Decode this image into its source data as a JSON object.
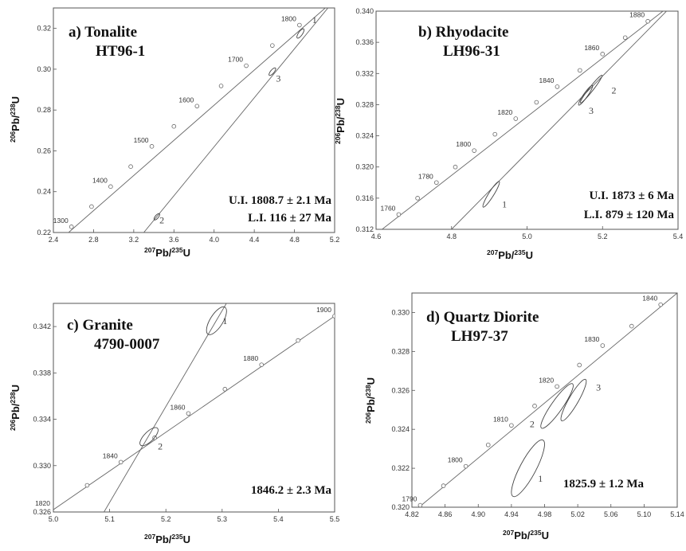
{
  "chart_data": [
    {
      "type": "scatter",
      "panel": "a",
      "title": "a) Tonalite",
      "subtitle": "HT96-1",
      "xlabel": {
        "pre": "207",
        "main": "Pb/",
        "sup": "235",
        "post": "U"
      },
      "ylabel": {
        "pre": "206",
        "main": "Pb/",
        "sup": "238",
        "post": "U"
      },
      "xlim": [
        2.4,
        5.2
      ],
      "ylim": [
        0.22,
        0.33
      ],
      "x_ticks": [
        "2.4",
        "2.8",
        "3.2",
        "3.6",
        "4.0",
        "4.4",
        "4.8",
        "5.2"
      ],
      "y_ticks": [
        "0.22",
        "0.24",
        "0.26",
        "0.28",
        "0.30",
        "0.32"
      ],
      "concordia_age_labels": [
        {
          "age": "1300",
          "x": 2.58,
          "y": 0.2228
        },
        {
          "age": "1400",
          "x": 2.97,
          "y": 0.2425
        },
        {
          "age": "1500",
          "x": 3.38,
          "y": 0.2622
        },
        {
          "age": "1600",
          "x": 3.83,
          "y": 0.2819
        },
        {
          "age": "1700",
          "x": 4.32,
          "y": 0.3017
        },
        {
          "age": "1800",
          "x": 4.85,
          "y": 0.3216
        }
      ],
      "concordia_markers": [
        [
          2.58,
          0.2228
        ],
        [
          2.78,
          0.2327
        ],
        [
          2.97,
          0.2425
        ],
        [
          3.17,
          0.2523
        ],
        [
          3.38,
          0.2622
        ],
        [
          3.6,
          0.272
        ],
        [
          3.83,
          0.2819
        ],
        [
          4.07,
          0.2918
        ],
        [
          4.32,
          0.3017
        ],
        [
          4.58,
          0.3116
        ],
        [
          4.85,
          0.3216
        ]
      ],
      "concordia_line": [
        [
          2.4,
          0.2135
        ],
        [
          5.2,
          0.334
        ]
      ],
      "discordia_line": [
        [
          3.3,
          0.22
        ],
        [
          5.2,
          0.334
        ]
      ],
      "ellipses": [
        {
          "label": "1",
          "x": 4.86,
          "y": 0.3175
        },
        {
          "label": "3",
          "x": 4.58,
          "y": 0.2988
        },
        {
          "label": "2",
          "x": 3.43,
          "y": 0.2277
        }
      ],
      "ellipse_label_positions": [
        {
          "label": "1",
          "x": 5.0,
          "y": 0.3225
        },
        {
          "label": "3",
          "x": 4.64,
          "y": 0.294
        },
        {
          "label": "2",
          "x": 3.48,
          "y": 0.2245
        }
      ],
      "annotations": [
        "U.I. 1808.7 ± 2.1 Ma",
        "L.I. 116 ± 27 Ma"
      ]
    },
    {
      "type": "scatter",
      "panel": "b",
      "title": "b) Rhyodacite",
      "subtitle": "LH96-31",
      "xlabel": {
        "pre": "207",
        "main": "Pb/",
        "sup": "235",
        "post": "U"
      },
      "ylabel": {
        "pre": "206",
        "main": "Pb/",
        "sup": "238",
        "post": "U"
      },
      "xlim": [
        4.6,
        5.4
      ],
      "ylim": [
        0.312,
        0.34
      ],
      "x_ticks": [
        "4.6",
        "4.8",
        "5.0",
        "5.2",
        "5.4"
      ],
      "y_ticks": [
        "0.312",
        "0.316",
        "0.320",
        "0.324",
        "0.328",
        "0.332",
        "0.336",
        "0.340"
      ],
      "concordia_age_labels": [
        {
          "age": "1760",
          "x": 4.66,
          "y": 0.3139
        },
        {
          "age": "1780",
          "x": 4.76,
          "y": 0.318
        },
        {
          "age": "1800",
          "x": 4.86,
          "y": 0.3221
        },
        {
          "age": "1820",
          "x": 4.97,
          "y": 0.3262
        },
        {
          "age": "1840",
          "x": 5.08,
          "y": 0.3303
        },
        {
          "age": "1860",
          "x": 5.2,
          "y": 0.3345
        },
        {
          "age": "1880",
          "x": 5.32,
          "y": 0.3387
        }
      ],
      "concordia_markers": [
        [
          4.66,
          0.3139
        ],
        [
          4.71,
          0.316
        ],
        [
          4.76,
          0.318
        ],
        [
          4.81,
          0.32
        ],
        [
          4.86,
          0.3221
        ],
        [
          4.915,
          0.3242
        ],
        [
          4.97,
          0.3262
        ],
        [
          5.025,
          0.3283
        ],
        [
          5.08,
          0.3303
        ],
        [
          5.14,
          0.3324
        ],
        [
          5.2,
          0.3345
        ],
        [
          5.26,
          0.3366
        ],
        [
          5.32,
          0.3387
        ]
      ],
      "concordia_line": [
        [
          4.6,
          0.3114
        ],
        [
          5.4,
          0.3415
        ]
      ],
      "discordia_line": [
        [
          4.8,
          0.312
        ],
        [
          5.4,
          0.3415
        ]
      ],
      "ellipses": [
        {
          "label": "1",
          "x": 4.905,
          "y": 0.3165
        },
        {
          "label": "3",
          "x": 5.155,
          "y": 0.3292
        },
        {
          "label": "2",
          "x": 5.17,
          "y": 0.33
        }
      ],
      "ellipse_label_positions": [
        {
          "label": "1",
          "x": 4.94,
          "y": 0.3148
        },
        {
          "label": "3",
          "x": 5.17,
          "y": 0.3268
        },
        {
          "label": "2",
          "x": 5.23,
          "y": 0.3294
        }
      ],
      "annotations": [
        "U.I. 1873 ± 6 Ma",
        "L.I. 879 ± 120 Ma"
      ]
    },
    {
      "type": "scatter",
      "panel": "c",
      "title": "c) Granite",
      "subtitle": "4790-0007",
      "xlabel": {
        "pre": "207",
        "main": "Pb/",
        "sup": "235",
        "post": "U"
      },
      "ylabel": {
        "pre": "206",
        "main": "Pb/",
        "sup": "238",
        "post": "U"
      },
      "xlim": [
        5.0,
        5.5
      ],
      "ylim": [
        0.326,
        0.344
      ],
      "x_ticks": [
        "5.0",
        "5.1",
        "5.2",
        "5.3",
        "5.4",
        "5.5"
      ],
      "y_ticks": [
        "0.326",
        "0.330",
        "0.334",
        "0.338",
        "0.342"
      ],
      "concordia_age_labels": [
        {
          "age": "1820",
          "x": 5.0,
          "y": 0.3262
        },
        {
          "age": "1840",
          "x": 5.12,
          "y": 0.3303
        },
        {
          "age": "1860",
          "x": 5.24,
          "y": 0.3345
        },
        {
          "age": "1880",
          "x": 5.37,
          "y": 0.3387
        },
        {
          "age": "1900",
          "x": 5.5,
          "y": 0.3429
        }
      ],
      "concordia_markers": [
        [
          5.06,
          0.3283
        ],
        [
          5.12,
          0.3303
        ],
        [
          5.18,
          0.3324
        ],
        [
          5.24,
          0.3345
        ],
        [
          5.305,
          0.3366
        ],
        [
          5.37,
          0.3387
        ],
        [
          5.435,
          0.3408
        ],
        [
          5.5,
          0.3429
        ]
      ],
      "concordia_line": [
        [
          5.0,
          0.3262
        ],
        [
          5.5,
          0.3429
        ]
      ],
      "discordia_line": [
        [
          5.09,
          0.326
        ],
        [
          5.31,
          0.3442
        ]
      ],
      "ellipses": [
        {
          "label": "1",
          "x": 5.29,
          "y": 0.3425
        },
        {
          "label": "2",
          "x": 5.17,
          "y": 0.3325
        }
      ],
      "ellipse_label_positions": [
        {
          "label": "1",
          "x": 5.305,
          "y": 0.3422
        },
        {
          "label": "2",
          "x": 5.19,
          "y": 0.3314
        }
      ],
      "annotations": [
        "1846.2 ± 2.3 Ma"
      ]
    },
    {
      "type": "scatter",
      "panel": "d",
      "title": "d) Quartz Diorite",
      "subtitle": "LH97-37",
      "xlabel": {
        "pre": "207",
        "main": "Pb/",
        "sup": "235",
        "post": "U"
      },
      "ylabel": {
        "pre": "206",
        "main": "Pb/",
        "sup": "238",
        "post": "U"
      },
      "xlim": [
        4.82,
        5.14
      ],
      "ylim": [
        0.32,
        0.331
      ],
      "x_ticks": [
        "4.82",
        "4.86",
        "4.90",
        "4.94",
        "4.98",
        "5.02",
        "5.06",
        "5.10",
        "5.14"
      ],
      "y_ticks": [
        "0.320",
        "0.322",
        "0.324",
        "0.326",
        "0.328",
        "0.330"
      ],
      "concordia_age_labels": [
        {
          "age": "1790",
          "x": 4.83,
          "y": 0.3201
        },
        {
          "age": "1800",
          "x": 4.885,
          "y": 0.3221
        },
        {
          "age": "1810",
          "x": 4.94,
          "y": 0.3242
        },
        {
          "age": "1820",
          "x": 4.995,
          "y": 0.3262
        },
        {
          "age": "1830",
          "x": 5.05,
          "y": 0.3283
        },
        {
          "age": "1840",
          "x": 5.12,
          "y": 0.3304
        }
      ],
      "concordia_markers": [
        [
          4.83,
          0.3201
        ],
        [
          4.858,
          0.3211
        ],
        [
          4.885,
          0.3221
        ],
        [
          4.912,
          0.3232
        ],
        [
          4.94,
          0.3242
        ],
        [
          4.968,
          0.3252
        ],
        [
          4.995,
          0.3262
        ],
        [
          5.022,
          0.3273
        ],
        [
          5.05,
          0.3283
        ],
        [
          5.085,
          0.3293
        ],
        [
          5.12,
          0.3304
        ]
      ],
      "concordia_line": [
        [
          4.82,
          0.3197
        ],
        [
          5.14,
          0.331
        ]
      ],
      "ellipses": [
        {
          "label": "1",
          "x": 4.96,
          "y": 0.322
        },
        {
          "label": "2",
          "x": 4.995,
          "y": 0.3252
        },
        {
          "label": "3",
          "x": 5.015,
          "y": 0.3255
        }
      ],
      "ellipse_label_positions": [
        {
          "label": "1",
          "x": 4.975,
          "y": 0.3213
        },
        {
          "label": "2",
          "x": 4.965,
          "y": 0.3241
        },
        {
          "label": "3",
          "x": 5.045,
          "y": 0.326
        }
      ],
      "annotations": [
        "1825.9 ± 1.2 Ma"
      ]
    }
  ]
}
